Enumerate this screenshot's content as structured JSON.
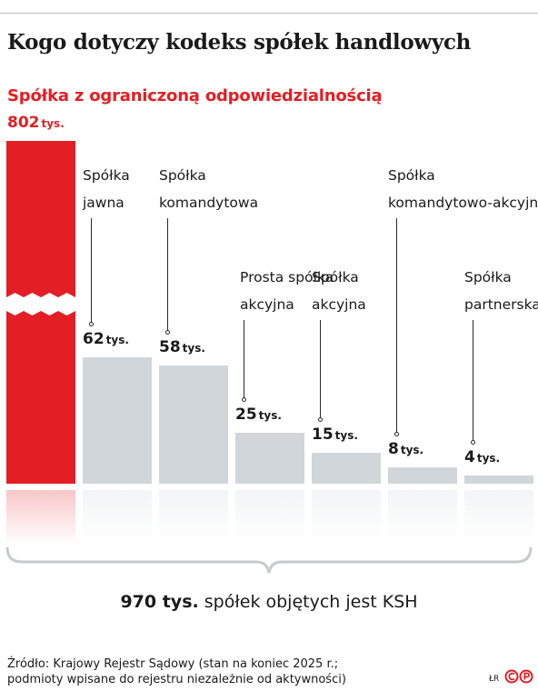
{
  "title": "Kogo dotyczy kodeks spółek handlowych",
  "highlight": {
    "label": "Spółka z ograniczoną odpowiedzialnością",
    "value_num": "802",
    "value_unit": "tys."
  },
  "total": {
    "value": "970 tys.",
    "text": "spółek objętych jest KSH"
  },
  "source": {
    "line1": "Źródło: Krajowy Rejestr Sądowy (stan na koniec 2025 r.;",
    "line2": "podmioty wpisane do rejestru niezależnie od aktywności)"
  },
  "credit": "ŁR",
  "logo": "PAP",
  "colors": {
    "highlight": "#e31e24",
    "bars": "#d1d6da",
    "text": "#1a1a1a"
  },
  "chart_data": {
    "type": "bar",
    "unit": "tys.",
    "categories": [
      "Spółka z ograniczoną odpowiedzialnością",
      "Spółka jawna",
      "Spółka komandytowa",
      "Prosta spółka akcyjna",
      "Spółka akcyjna",
      "Spółka komandytowo-akcyjna",
      "Spółka partnerska"
    ],
    "values": [
      802,
      62,
      58,
      25,
      15,
      8,
      4
    ],
    "value_labels": [
      "802",
      "62",
      "58",
      "25",
      "15",
      "8",
      "4"
    ],
    "label_lines": [
      [
        "Spółka z ograniczoną odpowiedzialnością"
      ],
      [
        "Spółka",
        "jawna"
      ],
      [
        "Spółka",
        "komandytowa"
      ],
      [
        "Prosta spółka",
        "akcyjna"
      ],
      [
        "Spółka",
        "akcyjna"
      ],
      [
        "Spółka",
        "komandytowo-akcyjna"
      ],
      [
        "Spółka",
        "partnerska"
      ]
    ],
    "highlighted_index": 0,
    "axis_break": true,
    "title": "",
    "xlabel": "",
    "ylabel": ""
  }
}
